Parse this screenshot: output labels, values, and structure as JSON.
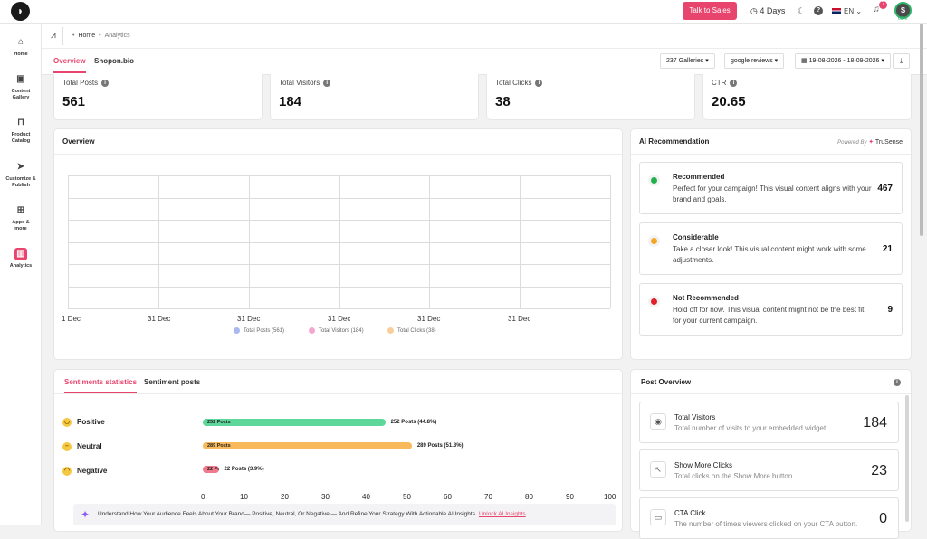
{
  "topbar": {
    "talk_to_sales": "Talk to Sales",
    "days": "4 Days",
    "lang": "EN",
    "notifications": "7",
    "avatar": "S",
    "progress": "60%"
  },
  "sidebar": {
    "items": [
      {
        "label": "Home",
        "icon": "home-icon"
      },
      {
        "label": "Content Gallery",
        "icon": "gallery-icon"
      },
      {
        "label": "Product Catalog",
        "icon": "bag-icon"
      },
      {
        "label": "Customize & Publish",
        "icon": "send-icon"
      },
      {
        "label": "Apps & more",
        "icon": "apps-icon"
      },
      {
        "label": "Analytics",
        "icon": "analytics-icon",
        "active": true
      }
    ]
  },
  "breadcrumb": {
    "home": "Home",
    "current": "Analytics"
  },
  "tabs": {
    "overview": "Overview",
    "shopon": "Shopon.bio"
  },
  "filters": {
    "galleries": "237 Galleries",
    "source": "google reviews",
    "date_range": "19-08-2026 - 18-09-2026"
  },
  "stats": [
    {
      "label": "Total Posts",
      "value": "561"
    },
    {
      "label": "Total Visitors",
      "value": "184"
    },
    {
      "label": "Total Clicks",
      "value": "38"
    },
    {
      "label": "CTR",
      "value": "20.65"
    }
  ],
  "overview": {
    "title": "Overview",
    "x_ticks": [
      "1 Dec",
      "31 Dec",
      "31 Dec",
      "31 Dec",
      "31 Dec",
      "31 Dec"
    ],
    "legend": [
      {
        "label": "Total Posts (561)",
        "color": "#a9b8ee"
      },
      {
        "label": "Total Visitors (184)",
        "color": "#f4a6d0"
      },
      {
        "label": "Total Clicks (38)",
        "color": "#f8cf9a"
      }
    ]
  },
  "ai": {
    "title": "AI Recommendation",
    "powered_by": "Powered By",
    "brand": "TruSense",
    "items": [
      {
        "title": "Recommended",
        "desc": "Perfect for your campaign! This visual content aligns with your brand and goals.",
        "count": "467",
        "color": "#22b14c"
      },
      {
        "title": "Considerable",
        "desc": "Take a closer look! This visual content might work with some adjustments.",
        "count": "21",
        "color": "#f5a623"
      },
      {
        "title": "Not Recommended",
        "desc": "Hold off for now. This visual content might not be the best fit for your current campaign.",
        "count": "9",
        "color": "#e0202a"
      }
    ]
  },
  "sentiments": {
    "tab_stats": "Sentiments statistics",
    "tab_posts": "Sentiment posts",
    "rows": [
      {
        "label": "Positive",
        "bar_label": "252 Posts",
        "value_label": "252 Posts (44.8%)",
        "percent": 44.8,
        "color": "#5ed89a"
      },
      {
        "label": "Neutral",
        "bar_label": "289 Posts",
        "value_label": "289 Posts (51.3%)",
        "percent": 51.3,
        "color": "#f8b95a"
      },
      {
        "label": "Negative",
        "bar_label": "22 Posts",
        "value_label": "22 Posts (3.9%)",
        "percent": 3.9,
        "color": "#f07a8c"
      }
    ],
    "axis": [
      "0",
      "10",
      "20",
      "30",
      "40",
      "50",
      "60",
      "70",
      "80",
      "90",
      "100"
    ],
    "banner": "Understand How Your Audience Feels About Your Brand— Positive, Neutral, Or Negative — And Refine Your Strategy With Actionable AI Insights",
    "banner_link": "Unlock AI Insights"
  },
  "post_overview": {
    "title": "Post Overview",
    "items": [
      {
        "title": "Total Visitors",
        "desc": "Total number of visits to your embedded widget.",
        "value": "184",
        "icon": "eye-icon"
      },
      {
        "title": "Show More Clicks",
        "desc": "Total clicks on the Show More button.",
        "value": "23",
        "icon": "cursor-icon"
      },
      {
        "title": "CTA Click",
        "desc": "The number of times viewers clicked on your CTA button.",
        "value": "0",
        "icon": "cta-icon"
      }
    ]
  }
}
